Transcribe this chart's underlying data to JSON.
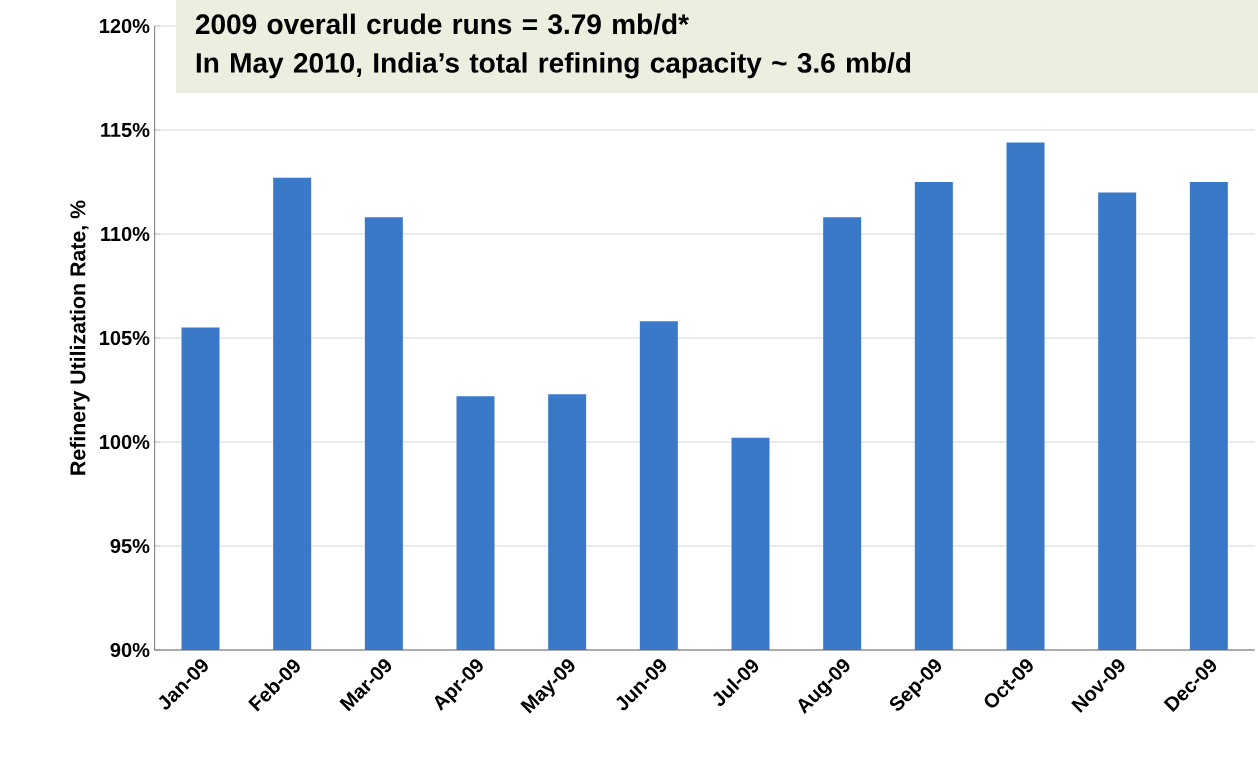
{
  "chart_data": {
    "type": "bar",
    "ylabel": "Refinery Utilization Rate, %",
    "categories": [
      "Jan-09",
      "Feb-09",
      "Mar-09",
      "Apr-09",
      "May-09",
      "Jun-09",
      "Jul-09",
      "Aug-09",
      "Sep-09",
      "Oct-09",
      "Nov-09",
      "Dec-09"
    ],
    "values": [
      105.5,
      112.7,
      110.8,
      102.2,
      102.3,
      105.8,
      100.2,
      110.8,
      112.5,
      114.4,
      112.0,
      112.5
    ],
    "color": "#3a78c8",
    "ylim": [
      90,
      120
    ],
    "yticks": [
      {
        "value": 90,
        "label": "90%"
      },
      {
        "value": 95,
        "label": "95%"
      },
      {
        "value": 100,
        "label": "100%"
      },
      {
        "value": 105,
        "label": "105%"
      },
      {
        "value": 110,
        "label": "110%"
      },
      {
        "value": 115,
        "label": "115%"
      },
      {
        "value": 120,
        "label": "120%"
      }
    ],
    "grid": "y",
    "annotations": [
      "2009 overall crude runs = 3.79 mb/d*",
      "In May 2010, India’s total refining capacity ~ 3.6 mb/d"
    ]
  }
}
